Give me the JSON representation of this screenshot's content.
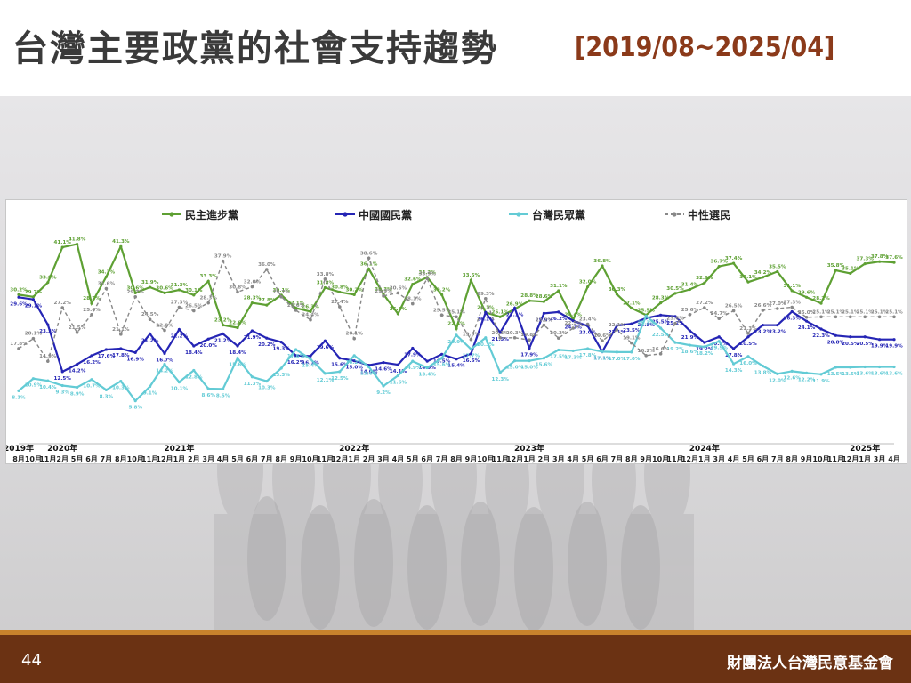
{
  "slide": {
    "title": "台灣主要政黨的社會支持趨勢",
    "date_range": "[2019/08~2025/04]",
    "page_number": "44",
    "organization": "財團法人台灣民意基金會"
  },
  "colors": {
    "dpp": "#5ea033",
    "kmt": "#2525b5",
    "tpp": "#63cbd5",
    "neutral": "#888888",
    "title": "#3a3a3a",
    "date_range": "#8b3a1a",
    "footer": "#6b3213",
    "footer_stripe": "#c8822c"
  },
  "chart_data": {
    "type": "line",
    "legend_position": "top",
    "year_labels": [
      {
        "label": "2019年",
        "index": 0
      },
      {
        "label": "2020年",
        "index": 3
      },
      {
        "label": "2021年",
        "index": 11
      },
      {
        "label": "2022年",
        "index": 23
      },
      {
        "label": "2023年",
        "index": 35
      },
      {
        "label": "2024年",
        "index": 47
      },
      {
        "label": "2025年",
        "index": 58
      }
    ],
    "x": [
      "8月",
      "10月",
      "11月",
      "2月",
      "5月",
      "6月",
      "7月",
      "8月",
      "10月",
      "11月",
      "12月",
      "1月",
      "2月",
      "3月",
      "4月",
      "5月",
      "6月",
      "7月",
      "8月",
      "9月",
      "10月",
      "11月",
      "12月",
      "1月",
      "2月",
      "3月",
      "4月",
      "5月",
      "6月",
      "7月",
      "8月",
      "9月",
      "10月",
      "11月",
      "12月",
      "1月",
      "2月",
      "3月",
      "4月",
      "5月",
      "6月",
      "7月",
      "8月",
      "9月",
      "10月",
      "11月",
      "12月",
      "1月",
      "3月",
      "4月",
      "5月",
      "6月",
      "7月",
      "8月",
      "9月",
      "10月",
      "11月",
      "12月",
      "1月",
      "3月",
      "4月"
    ],
    "series": [
      {
        "name": "民主進步黨",
        "key": "dpp",
        "marker": "triangle",
        "dashed": false,
        "values": [
          30.2,
          29.7,
          33.0,
          41.1,
          41.8,
          28.2,
          34.3,
          41.3,
          30.6,
          31.9,
          30.6,
          31.3,
          30.1,
          33.3,
          23.2,
          22.6,
          28.3,
          27.8,
          30.1,
          27.1,
          26.3,
          31.8,
          30.8,
          30.2,
          36.1,
          30.3,
          25.8,
          32.6,
          34.2,
          30.2,
          22.4,
          33.5,
          26.1,
          25.1,
          26.9,
          28.8,
          28.6,
          31.1,
          24.4,
          32.0,
          36.8,
          30.3,
          27.1,
          25.5,
          28.3,
          30.5,
          31.4,
          32.9,
          36.7,
          37.4,
          33.1,
          34.2,
          35.5,
          31.1,
          29.6,
          28.2,
          35.8,
          35.1,
          37.3,
          37.8,
          37.6
        ]
      },
      {
        "name": "中國國民黨",
        "key": "kmt",
        "marker": "diamond",
        "dashed": false,
        "values": [
          29.6,
          29.1,
          23.3,
          12.5,
          14.2,
          16.2,
          17.6,
          17.8,
          16.9,
          21.2,
          16.7,
          22.2,
          18.4,
          20.0,
          21.2,
          18.4,
          21.9,
          20.2,
          19.3,
          16.2,
          16.1,
          19.6,
          15.6,
          15.0,
          14.0,
          14.6,
          14.1,
          17.9,
          14.9,
          16.5,
          15.4,
          16.6,
          26.1,
          21.5,
          27.1,
          17.9,
          25.9,
          26.2,
          24.2,
          23.0,
          17.1,
          23.1,
          23.5,
          24.8,
          25.5,
          25.2,
          21.9,
          19.2,
          20.5,
          17.8,
          20.5,
          23.2,
          23.2,
          26.3,
          24.1,
          22.3,
          20.8,
          20.5,
          20.5,
          19.9,
          19.9
        ]
      },
      {
        "name": "台灣民眾黨",
        "key": "tpp",
        "marker": "circle",
        "dashed": false,
        "values": [
          8.1,
          10.9,
          10.4,
          9.3,
          8.9,
          10.7,
          8.3,
          10.3,
          5.8,
          9.1,
          14.2,
          10.1,
          12.8,
          8.6,
          8.5,
          15.6,
          11.3,
          10.3,
          13.3,
          17.6,
          15.4,
          12.1,
          12.5,
          16.2,
          13.6,
          9.2,
          11.6,
          14.9,
          13.4,
          15.6,
          20.9,
          17.7,
          20.3,
          12.3,
          15.0,
          15.0,
          15.6,
          17.5,
          17.3,
          17.8,
          17.1,
          17.0,
          17.0,
          25.3,
          22.5,
          19.2,
          18.6,
          18.2,
          19.5,
          14.3,
          16.0,
          13.8,
          12.0,
          12.6,
          12.2,
          11.9,
          13.5,
          13.5,
          13.6,
          13.6,
          13.6
        ]
      },
      {
        "name": "中性選民",
        "key": "neutral",
        "marker": "square",
        "dashed": true,
        "values": [
          17.8,
          20.1,
          14.9,
          27.2,
          21.5,
          25.6,
          31.6,
          21.1,
          29.7,
          24.5,
          22.0,
          27.3,
          26.5,
          28.3,
          37.9,
          30.8,
          32.0,
          36.0,
          29.7,
          26.6,
          24.4,
          33.8,
          27.4,
          20.1,
          38.6,
          29.9,
          30.6,
          28.1,
          33.9,
          25.5,
          25.1,
          19.9,
          29.3,
          20.3,
          20.3,
          19.8,
          23.2,
          20.2,
          22.5,
          23.4,
          19.6,
          22.1,
          19.1,
          16.2,
          16.6,
          23.6,
          25.6,
          27.2,
          24.7,
          26.5,
          21.3,
          26.6,
          27.0,
          27.3,
          25.0,
          25.1,
          25.1,
          25.1,
          25.1,
          25.1,
          25.1
        ]
      }
    ],
    "ylim": [
      0,
      45
    ],
    "grid": false
  },
  "legend": [
    {
      "label": "民主進步黨",
      "key": "dpp"
    },
    {
      "label": "中國國民黨",
      "key": "kmt"
    },
    {
      "label": "台灣民眾黨",
      "key": "tpp"
    },
    {
      "label": "中性選民",
      "key": "neutral"
    }
  ]
}
